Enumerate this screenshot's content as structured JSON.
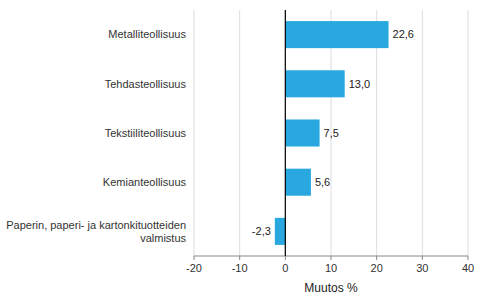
{
  "chart_data": {
    "type": "bar",
    "orientation": "horizontal",
    "categories": [
      "Paperin, paperi- ja kartonkituotteiden valmistus",
      "Kemianteollisuus",
      "Tekstiiliteollisuus",
      "Tehdasteollisuus",
      "Metalliteollisuus"
    ],
    "values": [
      -2.3,
      5.6,
      7.5,
      13.0,
      22.6
    ],
    "value_labels": [
      "-2,3",
      "5,6",
      "7,5",
      "13,0",
      "22,6"
    ],
    "data_labels": true,
    "color": "#29a8e0",
    "xlabel": "Muutos %",
    "xlim": [
      -20,
      40
    ],
    "xticks": [
      -20,
      -10,
      0,
      10,
      20,
      30,
      40
    ],
    "grid": true
  }
}
